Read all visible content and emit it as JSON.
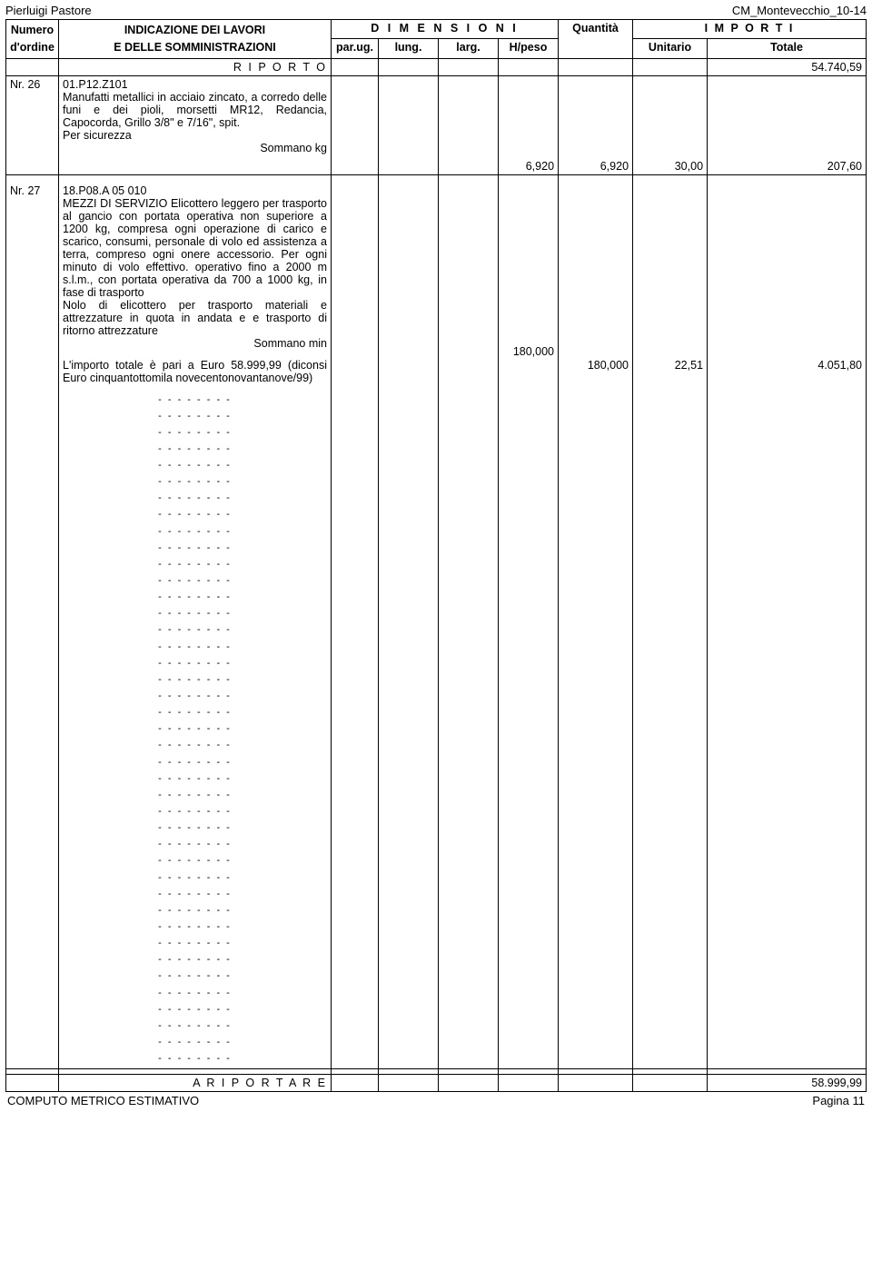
{
  "header": {
    "left": "Pierluigi Pastore",
    "right": "CM_Montevecchio_10-14"
  },
  "thead": {
    "numero1": "Numero",
    "numero2": "d'ordine",
    "indicazione1": "INDICAZIONE DEI LAVORI",
    "indicazione2": "E DELLE SOMMINISTRAZIONI",
    "dimensioni": "D I M E N S I O N I",
    "quantita": "Quantità",
    "importi": "I M P O R T I",
    "parug": "par.ug.",
    "lung": "lung.",
    "larg": "larg.",
    "hpeso": "H/peso",
    "unitario": "Unitario",
    "totale": "Totale"
  },
  "riporto": {
    "label": "R I P O R T O",
    "totale": "54.740,59"
  },
  "rows": [
    {
      "nr": "Nr. 26",
      "code": "01.P12.Z101",
      "desc": "Manufatti metallici in acciaio zincato,  a corredo delle funi e dei pioli,  morsetti  MR12, Redancia,  Capocorda,  Grillo 3/8\" e 7/16\", spit.",
      "sub": "Per sicurezza",
      "sommano": "Sommano kg",
      "hpeso": "6,920",
      "qta": "6,920",
      "unit": "30,00",
      "tot": "207,60"
    },
    {
      "nr": "Nr. 27",
      "code": "18.P08.A 05 010",
      "desc": "MEZZI DI SERVIZIO Elicottero leggero per trasporto al gancio con portata operativa non superiore a 1200 kg, compresa ogni operazione di carico e scarico, consumi, personale di volo ed assistenza a terra, compreso ogni onere accessorio. Per ogni minuto di volo effettivo. operativo fino a 2000 m s.l.m., con portata operativa da 700 a 1000 kg, in fase di trasporto",
      "sub": "Nolo di elicottero per trasporto materiali e attrezzature  in quota in andata e  e trasporto di ritorno attrezzature",
      "sommano": "Sommano min",
      "hpeso": "180,000",
      "qta": "180,000",
      "unit": "22,51",
      "tot": "4.051,80"
    }
  ],
  "importo_note": "L'importo totale è pari a Euro 58.999,99 (diconsi Euro cinquantottomila novecentonovantanove/99)",
  "dash_line": "- - - - - - - -",
  "dash_count": 41,
  "ariportare": {
    "label": "A  R I P O R T A R E",
    "totale": "58.999,99"
  },
  "footer": {
    "left": "COMPUTO METRICO ESTIMATIVO",
    "right": "Pagina 11"
  }
}
